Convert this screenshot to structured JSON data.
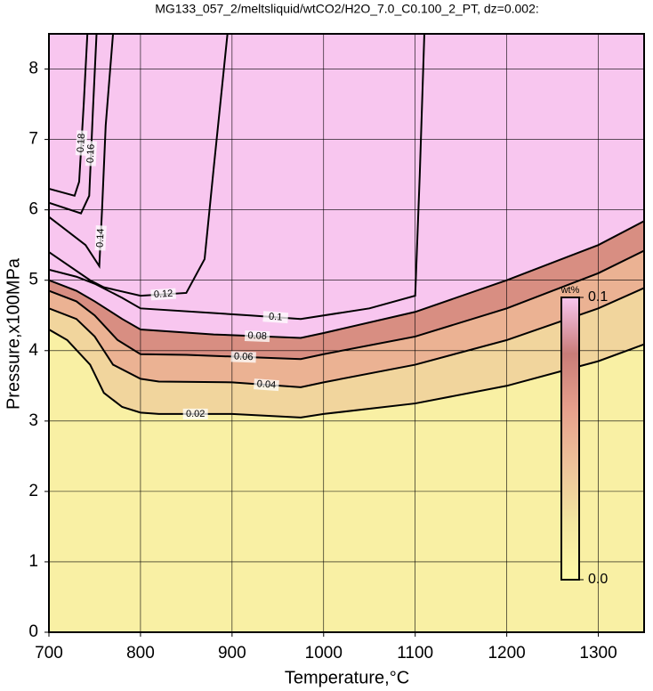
{
  "chart_data": {
    "type": "contour",
    "title": "MG133_057_2/meltsliquid/wtCO2/H2O_7.0_C0.100_2_PT, dz=0.002:",
    "xlabel": "Temperature,°C",
    "ylabel": "Pressure,x100MPa",
    "xlim": [
      700,
      1350
    ],
    "ylim": [
      0,
      8.5
    ],
    "xticks": [
      700,
      800,
      900,
      1000,
      1100,
      1200,
      1300
    ],
    "yticks": [
      0,
      1,
      2,
      3,
      4,
      5,
      6,
      7,
      8
    ],
    "grid": true,
    "colormap": [
      "#fffaa8",
      "#f3e6a0",
      "#eec39a",
      "#e7a08c",
      "#c97c78",
      "#f8c6ef"
    ],
    "contours": [
      {
        "level": 0.02,
        "x": [
          700,
          720,
          745,
          760,
          780,
          800,
          820,
          900,
          975,
          1000,
          1100,
          1200,
          1300,
          1350
        ],
        "y": [
          4.3,
          4.15,
          3.8,
          3.4,
          3.2,
          3.12,
          3.1,
          3.1,
          3.05,
          3.1,
          3.25,
          3.5,
          3.85,
          4.09
        ]
      },
      {
        "level": 0.04,
        "x": [
          700,
          730,
          750,
          770,
          800,
          820,
          900,
          975,
          1000,
          1100,
          1200,
          1300,
          1350
        ],
        "y": [
          4.6,
          4.45,
          4.2,
          3.8,
          3.6,
          3.56,
          3.55,
          3.48,
          3.55,
          3.8,
          4.15,
          4.6,
          4.89
        ]
      },
      {
        "level": 0.06,
        "x": [
          700,
          730,
          750,
          775,
          800,
          850,
          975,
          1000,
          1100,
          1200,
          1300,
          1350
        ],
        "y": [
          4.85,
          4.7,
          4.5,
          4.15,
          3.95,
          3.94,
          3.88,
          3.95,
          4.2,
          4.6,
          5.1,
          5.42
        ]
      },
      {
        "level": 0.08,
        "x": [
          700,
          730,
          750,
          780,
          800,
          880,
          975,
          1000,
          1100,
          1200,
          1300,
          1350
        ],
        "y": [
          5.0,
          4.85,
          4.7,
          4.45,
          4.3,
          4.23,
          4.18,
          4.25,
          4.55,
          5.0,
          5.5,
          5.84
        ]
      },
      {
        "level": 0.1,
        "x": [
          700,
          730,
          750,
          780,
          800,
          920,
          975,
          1050,
          1100,
          1105,
          1110
        ],
        "y": [
          5.15,
          5.05,
          4.95,
          4.75,
          4.6,
          4.5,
          4.45,
          4.6,
          4.78,
          6.5,
          8.5
        ]
      },
      {
        "level": 0.12,
        "x": [
          700,
          745,
          760,
          800,
          850,
          870,
          880,
          895
        ],
        "y": [
          5.4,
          5.0,
          4.9,
          4.78,
          4.82,
          5.3,
          6.6,
          8.5
        ]
      },
      {
        "level": 0.14,
        "x": [
          700,
          740,
          755,
          758,
          762,
          770
        ],
        "y": [
          5.9,
          5.5,
          5.2,
          6.0,
          7.2,
          8.5
        ]
      },
      {
        "level": 0.16,
        "x": [
          700,
          735,
          744,
          748,
          752
        ],
        "y": [
          6.1,
          5.95,
          6.2,
          7.4,
          8.5
        ]
      },
      {
        "level": 0.18,
        "x": [
          700,
          728,
          733,
          738,
          742
        ],
        "y": [
          6.3,
          6.2,
          6.4,
          7.5,
          8.5
        ]
      }
    ],
    "colorbar": {
      "label": "wt%",
      "lim": [
        0,
        0.1
      ],
      "ticks": [
        {
          "value": 0,
          "label": "0.0"
        },
        0.1
      ]
    }
  }
}
